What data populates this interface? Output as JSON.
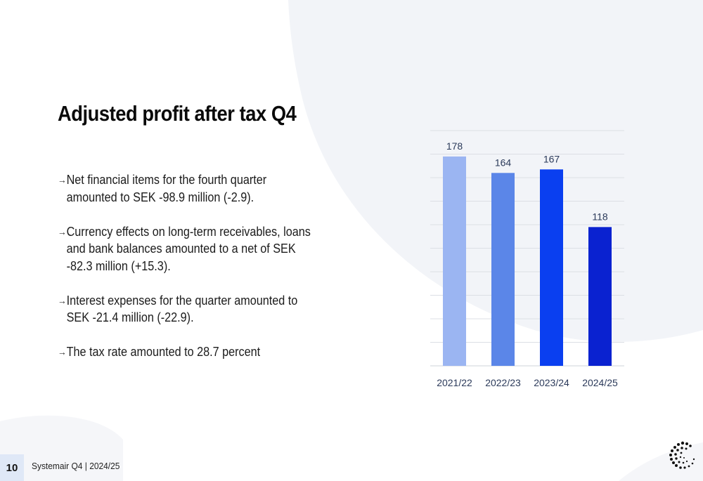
{
  "page": {
    "title": "Adjusted profit after tax Q4",
    "page_number": "10",
    "footer": "Systemair Q4 | 2024/25",
    "accent_colors": [
      "#9bb5f2",
      "#5b86e8",
      "#0a3ff0",
      "#0a22d0"
    ],
    "background_shape_color": "#f2f4f8"
  },
  "bullets": [
    {
      "icon": "arrow-right-icon",
      "text": "Net financial items for the fourth quarter amounted to SEK -98.9 million (-2.9)."
    },
    {
      "icon": "arrow-right-icon",
      "text": "Currency effects on long-term receivables, loans and bank balances amounted to a net of SEK -82.3 million (+15.3)."
    },
    {
      "icon": "arrow-right-icon",
      "text": "Interest expenses for the quarter amounted to SEK -21.4 million (-22.9)."
    },
    {
      "icon": "arrow-right-icon",
      "text": "The tax rate amounted to 28.7 percent"
    }
  ],
  "chart_data": {
    "type": "bar",
    "categories": [
      "2021/22",
      "2022/23",
      "2023/24",
      "2024/25"
    ],
    "values": [
      178,
      164,
      167,
      118
    ],
    "data_labels": [
      "178",
      "164",
      "167",
      "118"
    ],
    "colors": [
      "#9bb5f2",
      "#5b86e8",
      "#0a3ff0",
      "#0a22d0"
    ],
    "ylim": [
      0,
      200
    ],
    "grid": true,
    "gridline_step": 20,
    "yaxis_labels_shown": false,
    "title": "",
    "xlabel": "",
    "ylabel": ""
  }
}
